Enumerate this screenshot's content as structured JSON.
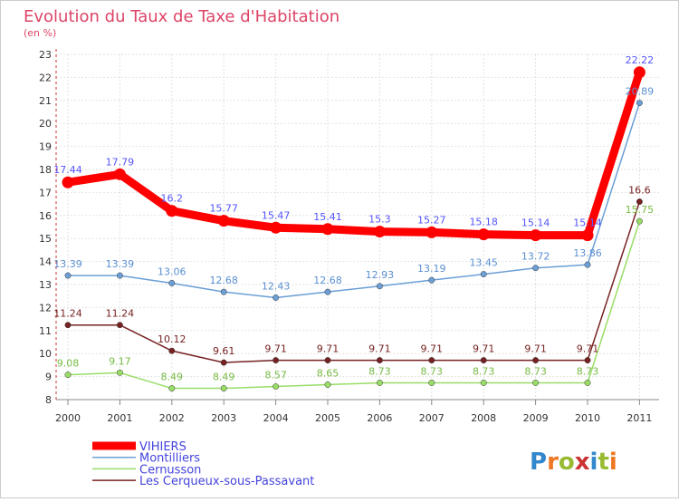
{
  "chart_data": {
    "type": "line",
    "title": "Evolution du Taux de Taxe d'Habitation",
    "subtitle": "(en %)",
    "xlabel": "",
    "ylabel": "",
    "categories": [
      "2000",
      "2001",
      "2002",
      "2003",
      "2004",
      "2005",
      "2006",
      "2007",
      "2008",
      "2009",
      "2010",
      "2011"
    ],
    "ylim": [
      8,
      23
    ],
    "yticks": [
      8,
      9,
      10,
      11,
      12,
      13,
      14,
      15,
      16,
      17,
      18,
      19,
      20,
      21,
      22,
      23
    ],
    "grid": true,
    "legend_position": "bottom-left",
    "series": [
      {
        "name": "VIHIERS",
        "color": "#ff0000",
        "label_color": "#5555ff",
        "values": [
          17.44,
          17.79,
          16.2,
          15.77,
          15.47,
          15.41,
          15.3,
          15.27,
          15.18,
          15.14,
          15.14,
          22.22
        ],
        "labels": [
          "17.44",
          "17.79",
          "16.2",
          "15.77",
          "15.47",
          "15.41",
          "15.3",
          "15.27",
          "15.18",
          "15.14",
          "15.14",
          "22.22"
        ]
      },
      {
        "name": "Montilliers",
        "color": "#6b9fd6",
        "label_color": "#5a8fd0",
        "values": [
          13.39,
          13.39,
          13.06,
          12.68,
          12.43,
          12.68,
          12.93,
          13.19,
          13.45,
          13.72,
          13.86,
          20.89
        ],
        "labels": [
          "13.39",
          "13.39",
          "13.06",
          "12.68",
          "12.43",
          "12.68",
          "12.93",
          "13.19",
          "13.45",
          "13.72",
          "13.86",
          "20.89"
        ]
      },
      {
        "name": "Cernusson",
        "color": "#99dd66",
        "label_color": "#77bb44",
        "values": [
          9.08,
          9.17,
          8.49,
          8.49,
          8.57,
          8.65,
          8.73,
          8.73,
          8.73,
          8.73,
          8.73,
          15.75
        ],
        "labels": [
          "9.08",
          "9.17",
          "8.49",
          "8.49",
          "8.57",
          "8.65",
          "8.73",
          "8.73",
          "8.73",
          "8.73",
          "8.73",
          "15.75"
        ]
      },
      {
        "name": "Les Cerqueux-sous-Passavant",
        "color": "#772222",
        "label_color": "#772222",
        "values": [
          11.24,
          11.24,
          10.12,
          9.61,
          9.71,
          9.71,
          9.71,
          9.71,
          9.71,
          9.71,
          9.71,
          16.6
        ],
        "labels": [
          "11.24",
          "11.24",
          "10.12",
          "9.61",
          "9.71",
          "9.71",
          "9.71",
          "9.71",
          "9.71",
          "9.71",
          "9.71",
          "16.6"
        ]
      }
    ]
  },
  "logo": {
    "text": "Proxiti"
  }
}
